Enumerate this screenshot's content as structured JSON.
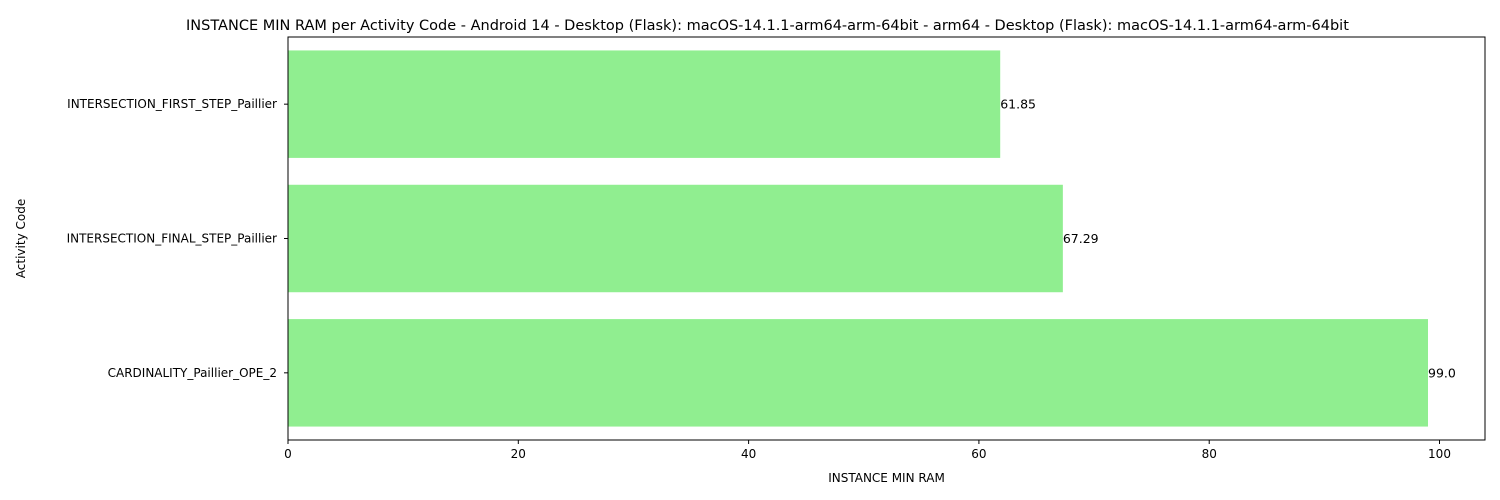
{
  "chart_data": {
    "type": "bar",
    "orientation": "horizontal",
    "title": "INSTANCE MIN RAM per Activity Code - Android 14 - Desktop (Flask): macOS-14.1.1-arm64-arm-64bit - arm64 - Desktop (Flask): macOS-14.1.1-arm64-arm-64bit",
    "xlabel": "INSTANCE MIN RAM",
    "ylabel": "Activity Code",
    "categories": [
      "INTERSECTION_FIRST_STEP_Paillier",
      "INTERSECTION_FINAL_STEP_Paillier",
      "CARDINALITY_Paillier_OPE_2"
    ],
    "values": [
      61.85,
      67.29,
      99.0
    ],
    "value_labels": [
      "61.85",
      "67.29",
      "99.0"
    ],
    "xlim": [
      0,
      103.95
    ],
    "xticks": [
      0,
      20,
      40,
      60,
      80,
      100
    ],
    "bar_color": "#90ee90",
    "grid": false,
    "legend": "none"
  }
}
